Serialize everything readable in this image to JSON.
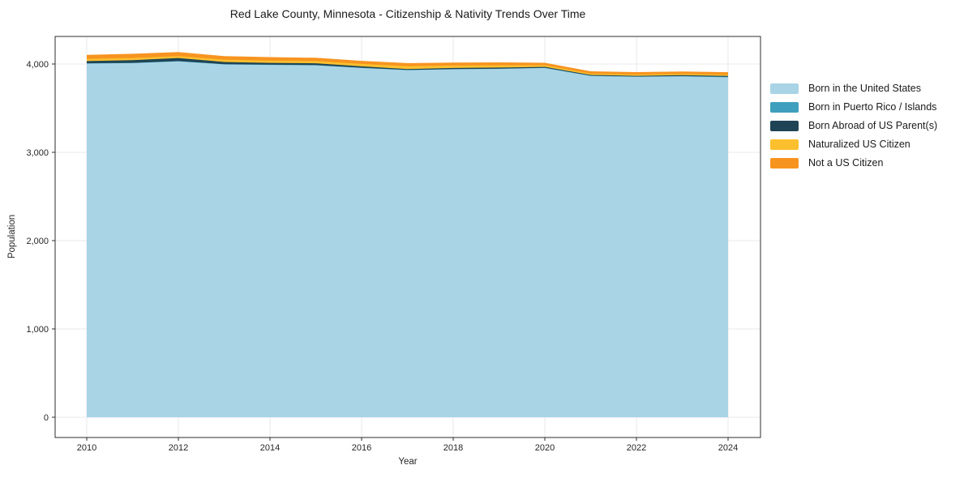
{
  "chart_data": {
    "type": "area",
    "stacked": true,
    "title": "Red Lake County, Minnesota - Citizenship & Nativity Trends Over Time",
    "xlabel": "Year",
    "ylabel": "Population",
    "x": [
      2010,
      2011,
      2012,
      2013,
      2014,
      2015,
      2016,
      2017,
      2018,
      2019,
      2020,
      2021,
      2022,
      2023,
      2024
    ],
    "xtick_values": [
      2010,
      2012,
      2014,
      2016,
      2018,
      2020,
      2022,
      2024
    ],
    "xtick_labels": [
      "2010",
      "2012",
      "2014",
      "2016",
      "2018",
      "2020",
      "2022",
      "2024"
    ],
    "ytick_values": [
      0,
      1000,
      2000,
      3000,
      4000
    ],
    "ytick_labels": [
      "0",
      "1,000",
      "2,000",
      "3,000",
      "4,000"
    ],
    "ylim": [
      0,
      4300
    ],
    "grid": true,
    "legend_position": "right",
    "background_color": "#ffffff",
    "gridline_color": "#e9e9e9",
    "frame_color": "#2e2e2e",
    "series": [
      {
        "name": "Born in the United States",
        "color": "#a8d4e6",
        "values": [
          4005,
          4010,
          4030,
          3995,
          3990,
          3985,
          3955,
          3930,
          3940,
          3945,
          3955,
          3865,
          3855,
          3860,
          3850
        ]
      },
      {
        "name": "Born in Puerto Rico / Islands",
        "color": "#3fa0be",
        "values": [
          3,
          3,
          3,
          3,
          3,
          3,
          3,
          3,
          3,
          3,
          3,
          3,
          3,
          3,
          5
        ]
      },
      {
        "name": "Born Abroad of US Parent(s)",
        "color": "#1f4456",
        "values": [
          25,
          30,
          35,
          25,
          20,
          20,
          15,
          10,
          12,
          12,
          10,
          8,
          8,
          10,
          10
        ]
      },
      {
        "name": "Naturalized US Citizen",
        "color": "#fcc02e",
        "values": [
          25,
          25,
          22,
          25,
          25,
          25,
          28,
          32,
          28,
          25,
          18,
          15,
          14,
          14,
          12
        ]
      },
      {
        "name": "Not a US Citizen",
        "color": "#f79420",
        "values": [
          45,
          48,
          45,
          42,
          40,
          38,
          35,
          35,
          33,
          33,
          28,
          26,
          28,
          28,
          30
        ]
      }
    ]
  }
}
